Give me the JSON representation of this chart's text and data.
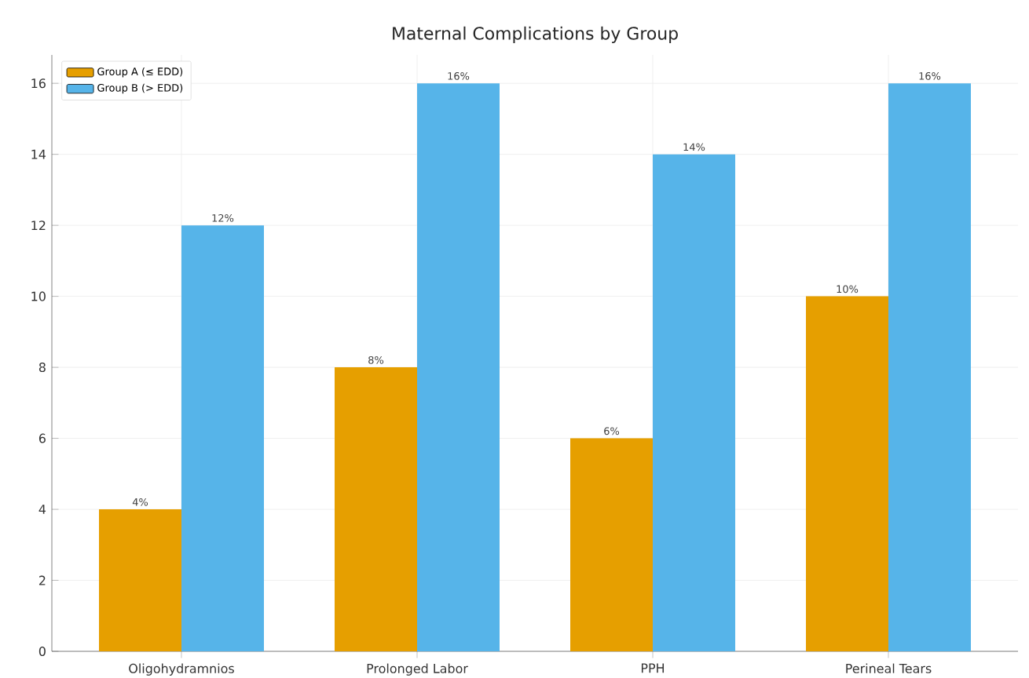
{
  "chart_data": {
    "type": "bar",
    "title": "Maternal Complications by Group",
    "categories": [
      "Oligohydramnios",
      "Prolonged Labor",
      "PPH",
      "Perineal Tears"
    ],
    "series": [
      {
        "name": "Group A (≤ EDD)",
        "color": "#e69f00",
        "values": [
          4,
          8,
          6,
          10
        ],
        "value_labels": [
          "4%",
          "8%",
          "6%",
          "10%"
        ]
      },
      {
        "name": "Group B (> EDD)",
        "color": "#56b4e9",
        "values": [
          12,
          16,
          14,
          16
        ],
        "value_labels": [
          "12%",
          "16%",
          "14%",
          "16%"
        ]
      }
    ],
    "ylim": [
      0,
      16.8
    ],
    "yticks": [
      0,
      2,
      4,
      6,
      8,
      10,
      12,
      14,
      16
    ],
    "grid": true,
    "legend": "top left"
  }
}
